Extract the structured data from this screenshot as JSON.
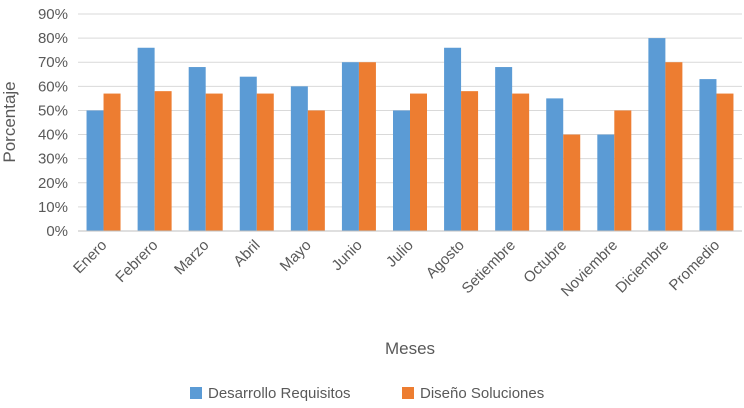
{
  "chart_data": {
    "type": "bar",
    "title": "",
    "xlabel": "Meses",
    "ylabel": "Porcentaje",
    "ylim": [
      0,
      90
    ],
    "yticks": [
      "0%",
      "10%",
      "20%",
      "30%",
      "40%",
      "50%",
      "60%",
      "70%",
      "80%",
      "90%"
    ],
    "grid": true,
    "legend_position": "bottom",
    "categories": [
      "Enero",
      "Febrero",
      "Marzo",
      "Abril",
      "Mayo",
      "Junio",
      "Julio",
      "Agosto",
      "Setiembre",
      "Octubre",
      "Noviembre",
      "Diciembre",
      "Promedio"
    ],
    "series": [
      {
        "name": "Desarrollo Requisitos",
        "color": "#5B9BD5",
        "values": [
          50,
          76,
          68,
          64,
          60,
          70,
          50,
          76,
          68,
          55,
          40,
          80,
          63
        ]
      },
      {
        "name": "Diseño Soluciones",
        "color": "#ED7D31",
        "values": [
          57,
          58,
          57,
          57,
          50,
          70,
          57,
          58,
          57,
          40,
          50,
          70,
          57
        ]
      }
    ]
  }
}
